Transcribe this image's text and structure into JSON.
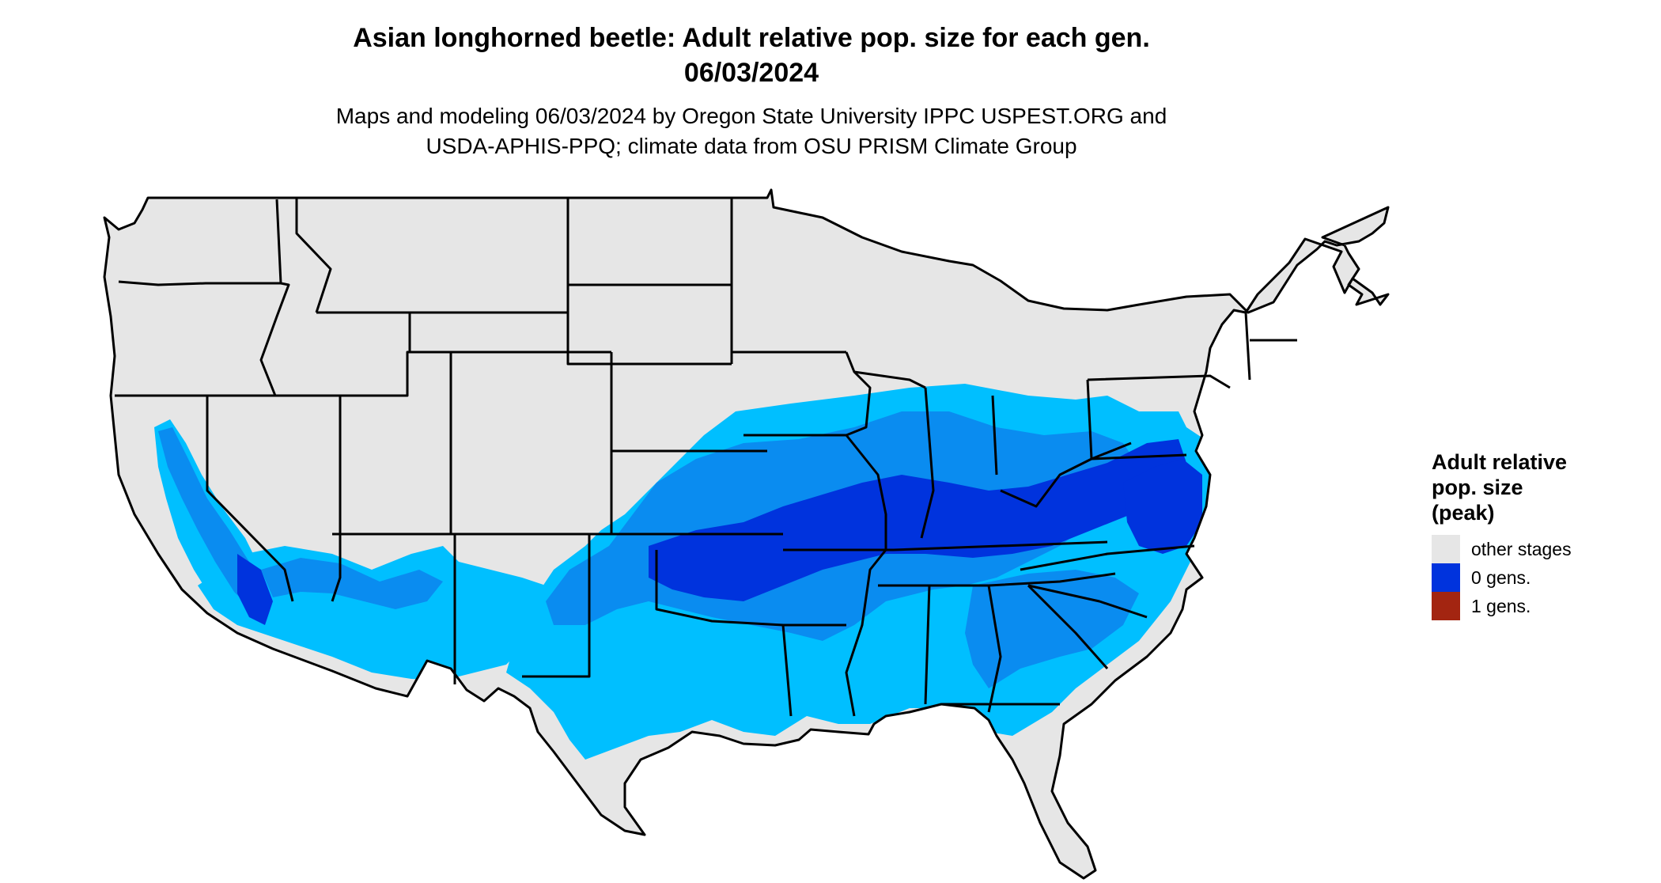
{
  "title_line1": "Asian longhorned beetle: Adult relative pop. size for each gen.",
  "title_line2": "06/03/2024",
  "subtitle_line1": "Maps and modeling 06/03/2024 by Oregon State University IPPC USPEST.ORG and",
  "subtitle_line2": "USDA-APHIS-PPQ; climate data from OSU PRISM Climate Group",
  "legend": {
    "title_line1": "Adult relative",
    "title_line2": "pop. size",
    "title_line3": "(peak)",
    "items": [
      {
        "label": "other stages",
        "color": "#e6e6e6"
      },
      {
        "label": "0 gens.",
        "color": "#0033dd"
      },
      {
        "label": "1 gens.",
        "color": "#a32511"
      }
    ]
  },
  "colors": {
    "land": "#e6e6e6",
    "blue_light": "#00bfff",
    "blue_mid": "#0a8cf0",
    "blue_dark": "#0033dd",
    "borders": "#000000"
  }
}
